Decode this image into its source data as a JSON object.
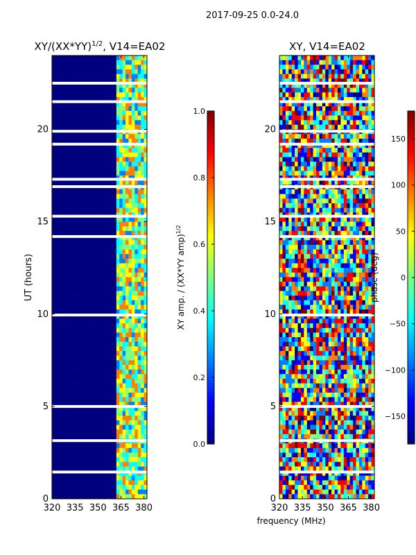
{
  "suptitle": "2017-09-25 0.0-24.0",
  "colors": {
    "jet": [
      "#00007f",
      "#0000ff",
      "#007fff",
      "#00ffff",
      "#7fff7f",
      "#ffff00",
      "#ff7f00",
      "#ff0000",
      "#7f0000"
    ]
  },
  "chart_data": [
    {
      "type": "heatmap",
      "title": "XY/(XX*YY)",
      "title_sup": "1/2",
      "title_suffix": ", V14=EA02",
      "xlabel": "",
      "ylabel": "UT (hours)",
      "xlim": [
        320,
        382
      ],
      "ylim": [
        0,
        24
      ],
      "xticks": [
        320,
        335,
        350,
        365,
        380
      ],
      "yticks": [
        0,
        5,
        10,
        15,
        20
      ],
      "freq_band_active": [
        362,
        382
      ],
      "blank_hours": [
        1.45,
        3.15,
        5.0,
        9.95,
        14.2,
        15.3,
        16.9,
        17.3,
        19.2,
        19.9,
        21.5,
        22.5
      ],
      "colorbar": {
        "label": "XY amp. / (XX*YY amp)",
        "label_sup": "1/2",
        "vmin": 0.0,
        "vmax": 1.0,
        "ticks": [
          "0.0",
          "0.2",
          "0.4",
          "0.6",
          "0.8",
          "1.0"
        ]
      }
    },
    {
      "type": "heatmap",
      "title": "XY, V14=EA02",
      "xlabel": "frequency (MHz)",
      "ylabel": "",
      "xlim": [
        320,
        382
      ],
      "ylim": [
        0,
        24
      ],
      "xticks": [
        320,
        335,
        350,
        365,
        380
      ],
      "yticks": [
        0,
        5,
        10,
        15,
        20
      ],
      "blank_hours": [
        1.45,
        3.15,
        5.0,
        9.95,
        14.2,
        15.3,
        16.9,
        17.3,
        19.2,
        19.9,
        21.5,
        22.5
      ],
      "colorbar": {
        "label": "phase (deg)",
        "vmin": -180,
        "vmax": 180,
        "ticks": [
          "150",
          "100",
          "50",
          "0",
          "−50",
          "−100",
          "−150"
        ],
        "tick_values": [
          150,
          100,
          50,
          0,
          -50,
          -100,
          -150
        ]
      }
    }
  ]
}
